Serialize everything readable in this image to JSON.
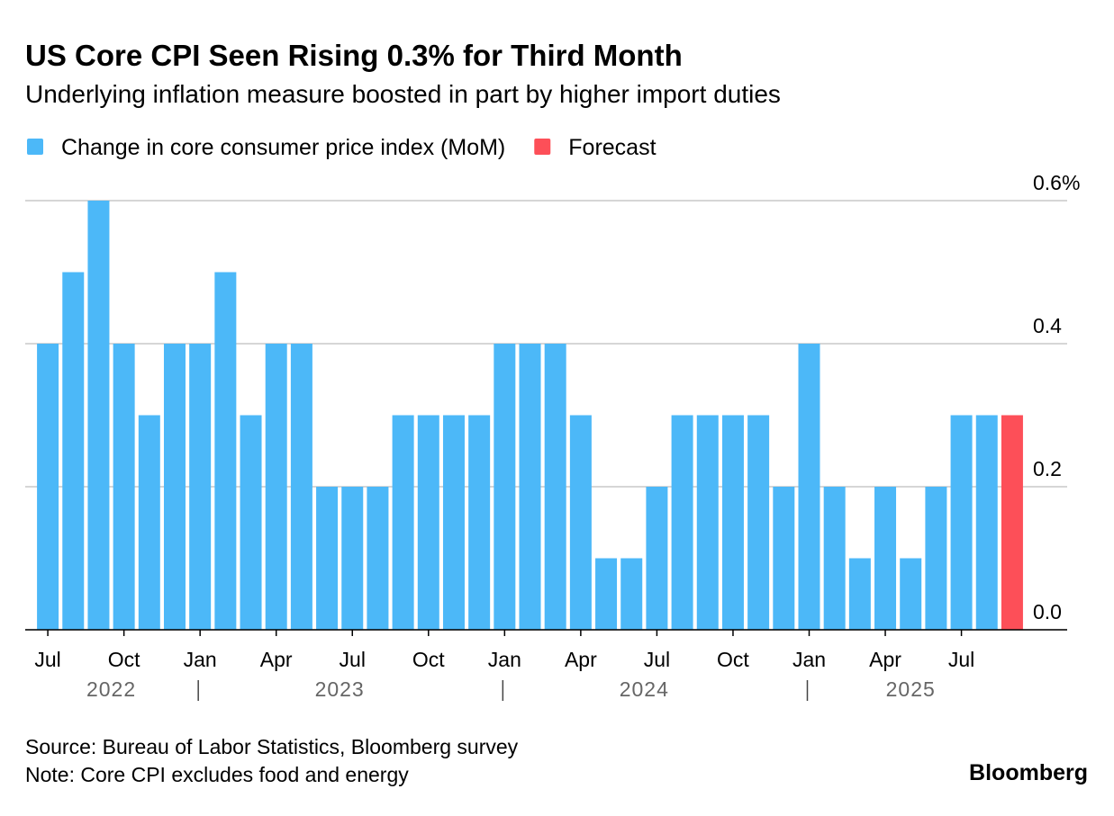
{
  "chart_data": {
    "type": "bar",
    "title": "US Core CPI Seen Rising 0.3% for Third Month",
    "subtitle": "Underlying inflation measure boosted in part by higher import duties",
    "categories": [
      "Jul",
      null,
      null,
      "Oct",
      null,
      null,
      "Jan",
      null,
      null,
      "Apr",
      null,
      null,
      "Jul",
      null,
      null,
      "Oct",
      null,
      null,
      "Jan",
      null,
      null,
      "Apr",
      null,
      null,
      "Jul",
      null,
      null,
      "Oct",
      null,
      null,
      "Jan",
      null,
      null,
      "Apr",
      null,
      null,
      "Jul",
      null,
      null
    ],
    "years": [
      "2022",
      "2023",
      "2024",
      "2025"
    ],
    "series": [
      {
        "name": "Change in core consumer price index (MoM)",
        "color": "#4cb8f8",
        "values": [
          0.4,
          0.5,
          0.6,
          0.4,
          0.3,
          0.4,
          0.4,
          0.5,
          0.3,
          0.4,
          0.4,
          0.2,
          0.2,
          0.2,
          0.3,
          0.3,
          0.3,
          0.3,
          0.4,
          0.4,
          0.4,
          0.3,
          0.1,
          0.1,
          0.2,
          0.3,
          0.3,
          0.3,
          0.3,
          0.2,
          0.4,
          0.2,
          0.1,
          0.2,
          0.1,
          0.2,
          0.3,
          0.3,
          null
        ]
      },
      {
        "name": "Forecast",
        "color": "#fd4f58",
        "values": [
          null,
          null,
          null,
          null,
          null,
          null,
          null,
          null,
          null,
          null,
          null,
          null,
          null,
          null,
          null,
          null,
          null,
          null,
          null,
          null,
          null,
          null,
          null,
          null,
          null,
          null,
          null,
          null,
          null,
          null,
          null,
          null,
          null,
          null,
          null,
          null,
          null,
          null,
          0.3
        ]
      }
    ],
    "ylim": [
      0,
      0.6
    ],
    "yticks": [
      {
        "value": 0,
        "label": "0.0"
      },
      {
        "value": 0.2,
        "label": "0.2"
      },
      {
        "value": 0.4,
        "label": "0.4"
      },
      {
        "value": 0.6,
        "label": "0.6%"
      }
    ],
    "grid": true,
    "source": "Source: Bureau of Labor Statistics, Bloomberg survey",
    "note": "Note: Core CPI excludes food and energy",
    "brand": "Bloomberg"
  }
}
